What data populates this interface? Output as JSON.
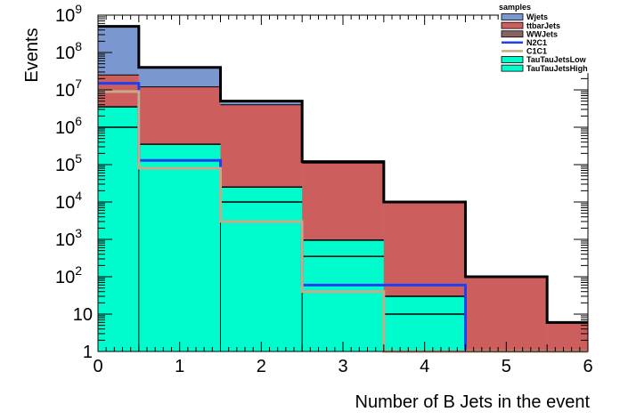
{
  "chart_data": {
    "type": "bar",
    "subtype": "stacked-histogram",
    "title": "",
    "xlabel": "Number of B Jets in the event",
    "ylabel": "Events",
    "xlim": [
      0,
      6
    ],
    "ylim": [
      1,
      1000000000
    ],
    "yscale": "log",
    "x_ticks": [
      "0",
      "1",
      "2",
      "3",
      "4",
      "5",
      "6"
    ],
    "y_ticks": [
      {
        "value": 1,
        "base": "1",
        "exp": ""
      },
      {
        "value": 10,
        "base": "10",
        "exp": ""
      },
      {
        "value": 100,
        "base": "10",
        "exp": "2"
      },
      {
        "value": 1000,
        "base": "10",
        "exp": "3"
      },
      {
        "value": 10000,
        "base": "10",
        "exp": "4"
      },
      {
        "value": 100000,
        "base": "10",
        "exp": "5"
      },
      {
        "value": 1000000,
        "base": "10",
        "exp": "6"
      },
      {
        "value": 10000000,
        "base": "10",
        "exp": "7"
      },
      {
        "value": 100000000,
        "base": "10",
        "exp": "8"
      },
      {
        "value": 1000000000,
        "base": "10",
        "exp": "9"
      }
    ],
    "bin_edges": [
      0,
      0.5,
      1.5,
      2.5,
      3.5,
      4.5,
      5.5,
      6
    ],
    "stack_boundaries": [
      {
        "name": "TauTauJetsHigh",
        "totals": [
          1000000,
          0,
          0,
          0,
          0,
          0,
          0
        ]
      },
      {
        "name": "TauTauJetsLow",
        "totals": [
          3500000,
          350000,
          25000,
          950,
          30,
          1,
          1
        ]
      },
      {
        "name": "WWJets",
        "totals": [
          3500000,
          350000,
          25000,
          950,
          30,
          1,
          1
        ]
      },
      {
        "name": "ttbarJets",
        "totals": [
          25000000,
          12000000,
          4000000,
          110000,
          10000,
          100,
          6
        ]
      },
      {
        "name": "Wjets",
        "totals": [
          500000000,
          40000000,
          5000000,
          120000,
          10000,
          100,
          6
        ]
      }
    ],
    "internal_lines": [
      {
        "bin": 1,
        "value": 130000
      },
      {
        "bin": 2,
        "value": 10000
      },
      {
        "bin": 3,
        "value": 350
      },
      {
        "bin": 4,
        "value": 10
      }
    ],
    "black_outline": [
      500000000,
      40000000,
      5000000,
      120000,
      10000,
      100,
      6
    ],
    "overlays": [
      {
        "name": "N2C1",
        "color": "#1f3ff2",
        "values": [
          15000000,
          130000,
          3000,
          60,
          60,
          1,
          1
        ]
      },
      {
        "name": "C1C1",
        "color": "#c9a98a",
        "values": [
          9000000,
          80000,
          3000,
          40,
          1,
          1,
          1
        ]
      }
    ],
    "legend": {
      "title": "samples",
      "placement": "top-right",
      "entries": [
        {
          "label": "Wjets",
          "kind": "fill",
          "color": "#7b97cf"
        },
        {
          "label": "ttbarJets",
          "kind": "fill",
          "color": "#cd5e5e"
        },
        {
          "label": "WWJets",
          "kind": "fill",
          "color": "#8a6262"
        },
        {
          "label": "N2C1",
          "kind": "line",
          "color": "#1f3ff2"
        },
        {
          "label": "C1C1",
          "kind": "line",
          "color": "#c9a98a"
        },
        {
          "label": "TauTauJetsLow",
          "kind": "fill",
          "color": "#00fbcd"
        },
        {
          "label": "TauTauJetsHigh",
          "kind": "fill",
          "color": "#00fbcd"
        }
      ]
    },
    "colors": {
      "Wjets": "#7b97cf",
      "ttbarJets": "#cd5e5e",
      "WWJets": "#8a6262",
      "TauTau": "#00fbcd"
    },
    "grid": false
  }
}
